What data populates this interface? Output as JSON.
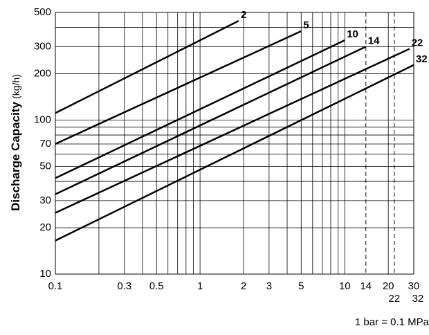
{
  "chart_data": {
    "type": "line",
    "ylabel": "Discharge Capacity",
    "ylabel_unit": "(kg/h)",
    "note": "1 bar = 0.1 MPa",
    "log_x": true,
    "log_y": true,
    "xlim": [
      0.1,
      30
    ],
    "ylim": [
      10,
      500
    ],
    "xticks": [
      0.1,
      0.3,
      0.5,
      1,
      2,
      3,
      5,
      10,
      14,
      20,
      30
    ],
    "xticks2": [
      22,
      32
    ],
    "yticks": [
      10,
      20,
      30,
      50,
      70,
      100,
      200,
      300,
      500
    ],
    "xgrid": [
      0.1,
      0.2,
      0.3,
      0.4,
      0.5,
      0.6,
      0.7,
      0.8,
      0.9,
      1,
      2,
      3,
      4,
      5,
      6,
      7,
      8,
      9,
      10,
      20,
      30
    ],
    "ygrid": [
      10,
      20,
      30,
      40,
      50,
      60,
      70,
      80,
      90,
      100,
      200,
      300,
      400,
      500
    ],
    "dashed_x": [
      14,
      22
    ],
    "series": [
      {
        "name": "2",
        "color": "#000000",
        "x": [
          0.1,
          1.85
        ],
        "values": [
          111,
          441
        ]
      },
      {
        "name": "5",
        "color": "#000000",
        "x": [
          0.1,
          5
        ],
        "values": [
          70,
          378
        ]
      },
      {
        "name": "10",
        "color": "#000000",
        "x": [
          0.1,
          10
        ],
        "values": [
          42,
          330
        ]
      },
      {
        "name": "14",
        "color": "#000000",
        "x": [
          0.1,
          14
        ],
        "values": [
          33,
          300
        ]
      },
      {
        "name": "22",
        "color": "#000000",
        "x": [
          0.1,
          28
        ],
        "values": [
          25,
          290
        ]
      },
      {
        "name": "32",
        "color": "#000000",
        "x": [
          0.1,
          30
        ],
        "values": [
          16.5,
          228
        ]
      }
    ]
  }
}
